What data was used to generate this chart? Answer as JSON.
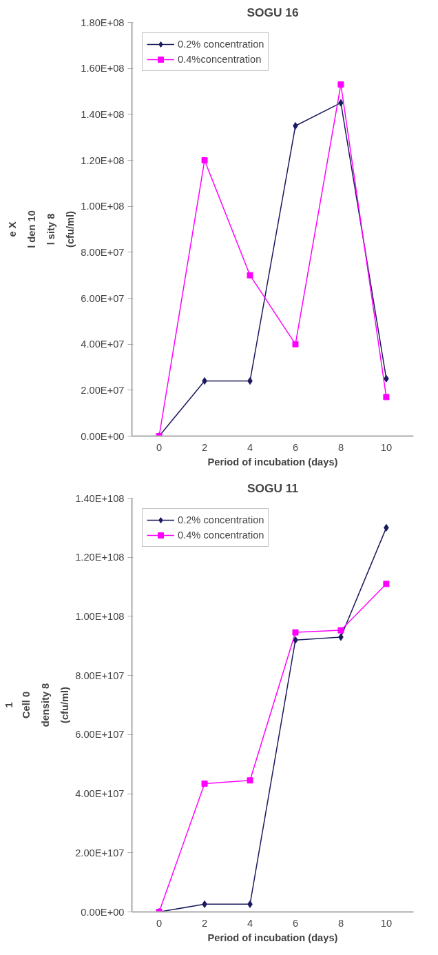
{
  "chart_data": [
    {
      "type": "line",
      "title": "SOGU 16",
      "xlabel": "Period of incubation (days)",
      "ylabel": "(cfu/ml)\nl sity 8\nl den 10\ne X",
      "categories": [
        "0",
        "2",
        "4",
        "6",
        "8",
        "10"
      ],
      "series": [
        {
          "name": "0.2% concentration",
          "color": "#1a1a5e",
          "marker": "diamond",
          "values": [
            0,
            24000000,
            24000000,
            135000000,
            145000000,
            25000000
          ]
        },
        {
          "name": "0.4%concentration",
          "color": "#ff00ff",
          "marker": "square",
          "values": [
            0,
            120000000,
            70000000,
            40000000,
            153000000,
            17000000
          ]
        }
      ],
      "ylim": [
        0,
        180000000
      ],
      "yticks": [
        {
          "value": 0,
          "label": "0.00E+00"
        },
        {
          "value": 20000000,
          "label": "2.00E+07"
        },
        {
          "value": 40000000,
          "label": "4.00E+07"
        },
        {
          "value": 60000000,
          "label": "6.00E+07"
        },
        {
          "value": 80000000,
          "label": "8.00E+07"
        },
        {
          "value": 100000000,
          "label": "1.00E+08"
        },
        {
          "value": 120000000,
          "label": "1.20E+08"
        },
        {
          "value": 140000000,
          "label": "1.40E+08"
        },
        {
          "value": 160000000,
          "label": "1.60E+08"
        },
        {
          "value": 180000000,
          "label": "1.80E+08"
        }
      ],
      "grid": false,
      "legend": "top left"
    },
    {
      "type": "line",
      "title": "SOGU 11",
      "xlabel": "Period of incubation (days)",
      "ylabel": "(cfu/ml)\ndensity 8\nCell 0\n1",
      "categories": [
        "0",
        "2",
        "4",
        "6",
        "8",
        "10"
      ],
      "series": [
        {
          "name": "0.2% concentration",
          "color": "#1a1a5e",
          "marker": "diamond",
          "values": [
            0,
            2.6e+106,
            2.6e+106,
            9.2e+107,
            9.3e+107,
            1.3e+108
          ]
        },
        {
          "name": "0.4% concentration",
          "color": "#ff00ff",
          "marker": "square",
          "values": [
            0,
            4.34e+107,
            4.45e+107,
            9.46e+107,
            9.53e+107,
            1.11e+108
          ]
        }
      ],
      "ylim": [
        0,
        1.4e+108
      ],
      "yticks": [
        {
          "value": 0,
          "label": "0.00E+00"
        },
        {
          "value": 2e+107,
          "label": "2.00E+107"
        },
        {
          "value": 4e+107,
          "label": "4.00E+107"
        },
        {
          "value": 6e+107,
          "label": "6.00E+107"
        },
        {
          "value": 8e+107,
          "label": "8.00E+107"
        },
        {
          "value": 1e+108,
          "label": "1.00E+108"
        },
        {
          "value": 1.2e+108,
          "label": "1.20E+108"
        },
        {
          "value": 1.4e+108,
          "label": "1.40E+108"
        }
      ],
      "grid": false,
      "legend": "top left"
    }
  ]
}
